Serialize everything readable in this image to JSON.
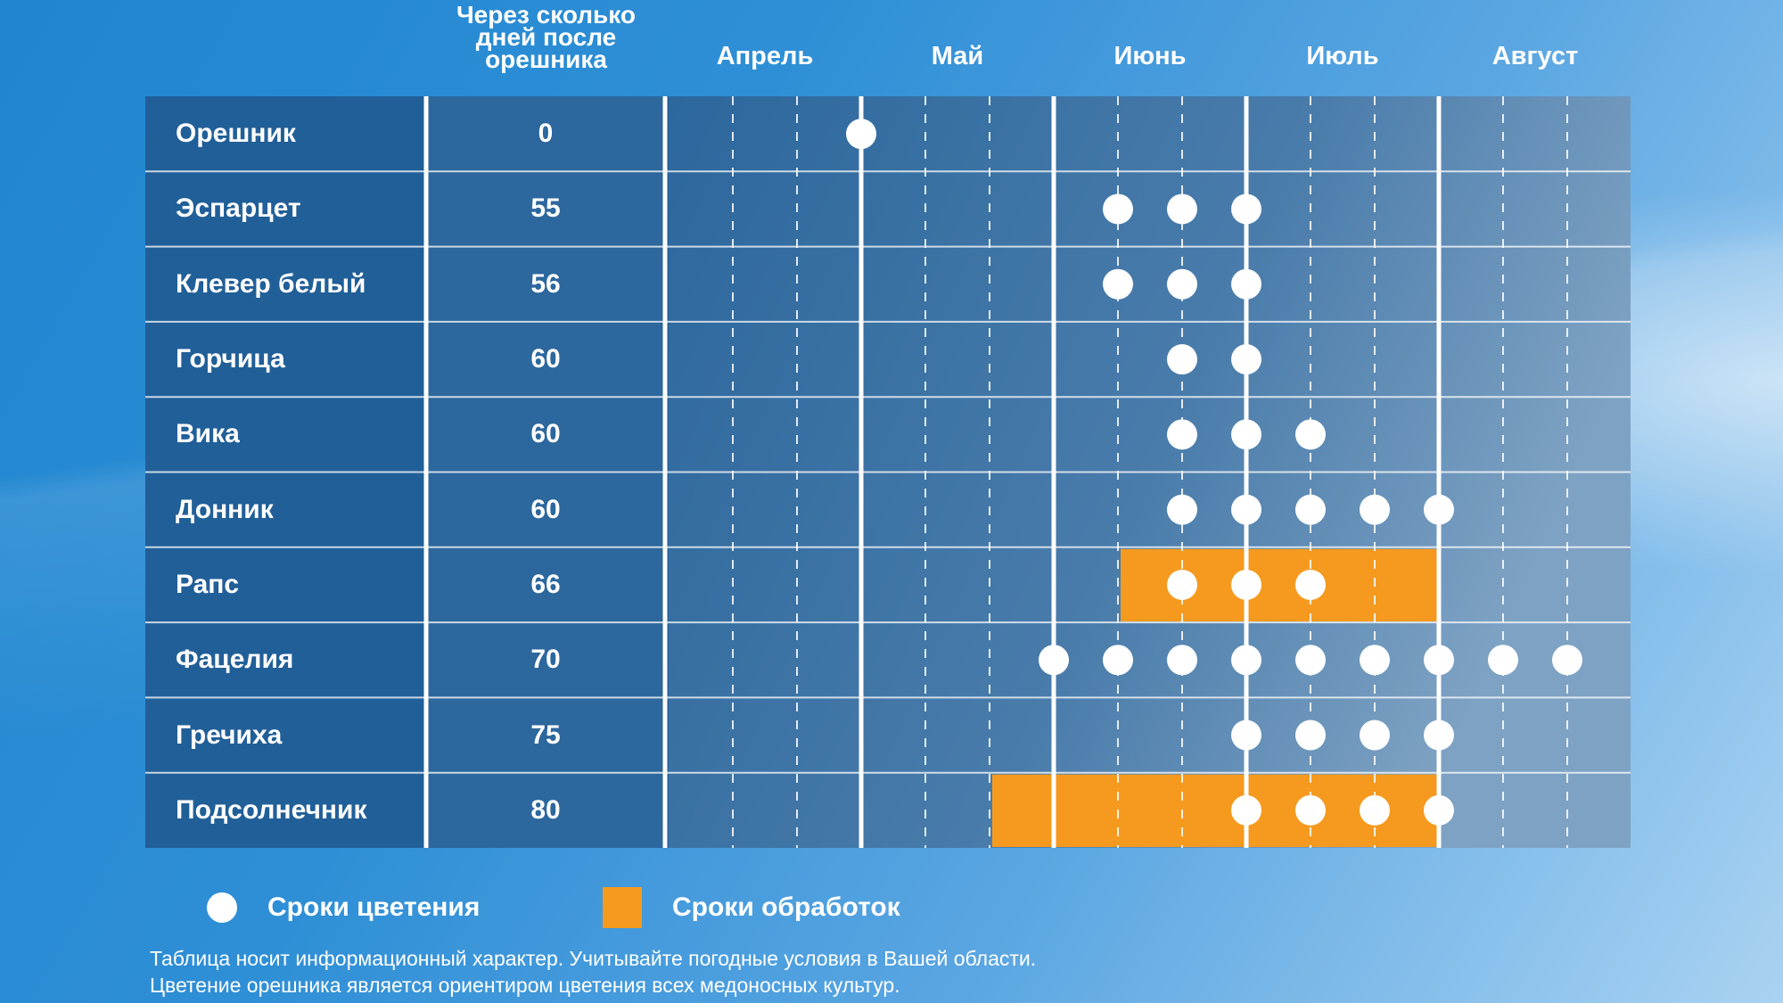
{
  "header": {
    "days_label": "Через сколько\nдней после\nорешника",
    "months": [
      "Апрель",
      "Май",
      "Июнь",
      "Июль",
      "Август"
    ]
  },
  "legend": {
    "flowering": "Сроки цветения",
    "treatment": "Сроки обработок"
  },
  "notes": [
    "Таблица носит информационный характер. Учитывайте погодные условия в Вашей области.",
    "Цветение орешника является ориентиром цветения всех медоносных культур."
  ],
  "colors": {
    "flowering_dot": "#ffffff",
    "treatment_bar": "#f59a1e",
    "table_base": "#215f98"
  },
  "chart_data": {
    "type": "table",
    "columns": [
      "Через сколько дней после орешника",
      "Апрель",
      "Май",
      "Июнь",
      "Июль",
      "Август"
    ],
    "period_unit": "third of month (decade)",
    "periods_per_month": 3,
    "rows": [
      {
        "name": "Орешник",
        "days": "0",
        "flowering": [
          3
        ],
        "treatment": []
      },
      {
        "name": "Эспарцет",
        "days": "55",
        "flowering": [
          7,
          8,
          9
        ],
        "treatment": []
      },
      {
        "name": "Клевер белый",
        "days": "56",
        "flowering": [
          7,
          8,
          9
        ],
        "treatment": []
      },
      {
        "name": "Горчица",
        "days": "60",
        "flowering": [
          8,
          9
        ],
        "treatment": []
      },
      {
        "name": "Вика",
        "days": "60",
        "flowering": [
          8,
          9,
          10
        ],
        "treatment": []
      },
      {
        "name": "Донник",
        "days": "60",
        "flowering": [
          8,
          9,
          10,
          11,
          12
        ],
        "treatment": []
      },
      {
        "name": "Рапс",
        "days": "66",
        "flowering": [
          8,
          9,
          10
        ],
        "treatment": [
          [
            7,
            12
          ]
        ]
      },
      {
        "name": "Фацелия",
        "days": "70",
        "flowering": [
          6,
          7,
          8,
          9,
          10,
          11,
          12,
          13,
          14
        ],
        "treatment": []
      },
      {
        "name": "Гречиха",
        "days": "75",
        "flowering": [
          9,
          10,
          11,
          12
        ],
        "treatment": []
      },
      {
        "name": "Подсолнечник",
        "days": "80",
        "flowering": [
          9,
          10,
          11,
          12
        ],
        "treatment": [
          [
            5,
            12
          ]
        ]
      }
    ]
  }
}
